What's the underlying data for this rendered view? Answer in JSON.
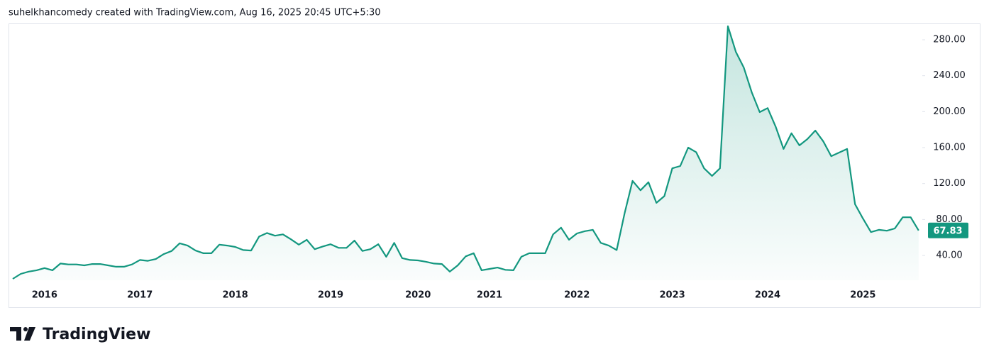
{
  "chart_data": {
    "type": "area-line",
    "title": "suhelkhancomedy created with TradingView.com, Aug 16, 2025 20:45 UTC+5:30",
    "logo_text": "TradingView",
    "categories": [
      null,
      null,
      null,
      null,
      "2016",
      null,
      null,
      null,
      null,
      null,
      null,
      null,
      null,
      null,
      null,
      null,
      "2017",
      null,
      null,
      null,
      null,
      null,
      null,
      null,
      null,
      null,
      null,
      null,
      "2018",
      null,
      null,
      null,
      null,
      null,
      null,
      null,
      null,
      null,
      null,
      null,
      "2019",
      null,
      null,
      null,
      null,
      null,
      null,
      null,
      null,
      null,
      null,
      "2020",
      null,
      null,
      null,
      null,
      null,
      null,
      null,
      null,
      "2021",
      null,
      null,
      null,
      null,
      null,
      null,
      null,
      null,
      null,
      null,
      "2022",
      null,
      null,
      null,
      null,
      null,
      null,
      null,
      null,
      null,
      null,
      null,
      "2023",
      null,
      null,
      null,
      null,
      null,
      null,
      null,
      null,
      null,
      null,
      null,
      "2024",
      null,
      null,
      null,
      null,
      null,
      null,
      null,
      null,
      null,
      null,
      null,
      "2025",
      null,
      null,
      null,
      null,
      null,
      null,
      null
    ],
    "series": [
      {
        "color": "#13977f",
        "values": [
          14,
          19.5,
          22,
          23.5,
          26,
          23.5,
          31,
          30,
          30,
          29,
          30.5,
          30.5,
          29,
          27.5,
          27.5,
          30,
          35,
          34,
          36,
          41.5,
          45,
          53.5,
          51,
          45.5,
          42.5,
          42.5,
          52,
          51,
          49.5,
          46,
          45.5,
          61,
          65,
          62,
          63.5,
          58,
          52,
          57.5,
          47,
          50,
          52.5,
          48.5,
          48.5,
          56.5,
          45,
          47,
          52.5,
          38.5,
          54,
          37,
          35,
          34.5,
          33,
          31,
          30.5,
          22,
          29,
          39,
          42.5,
          23.5,
          25,
          26.5,
          24,
          23.5,
          38.5,
          42.5,
          42.5,
          42.5,
          63.5,
          71,
          57.5,
          64.5,
          67,
          68.5,
          54,
          51,
          46,
          87,
          123,
          112.5,
          121.5,
          98.5,
          106,
          137,
          139.5,
          160,
          155,
          137,
          128.5,
          137,
          295,
          266.5,
          249,
          221.5,
          199.5,
          204,
          183.5,
          158.5,
          176,
          162.5,
          169.5,
          179,
          167,
          150.5,
          154.5,
          158.5,
          97,
          81,
          66,
          68.5,
          67.5,
          70,
          82.5,
          82.5,
          67.83
        ]
      }
    ],
    "ylim": [
      12.4,
      296.6
    ],
    "yticks": [
      {
        "value": 40,
        "label": "40.00"
      },
      {
        "value": 80,
        "label": "80.00"
      },
      {
        "value": 120,
        "label": "120.00"
      },
      {
        "value": 160,
        "label": "160.00"
      },
      {
        "value": 200,
        "label": "200.00"
      },
      {
        "value": 240,
        "label": "240.00"
      },
      {
        "value": 280,
        "label": "280.00"
      }
    ],
    "grid": false
  }
}
